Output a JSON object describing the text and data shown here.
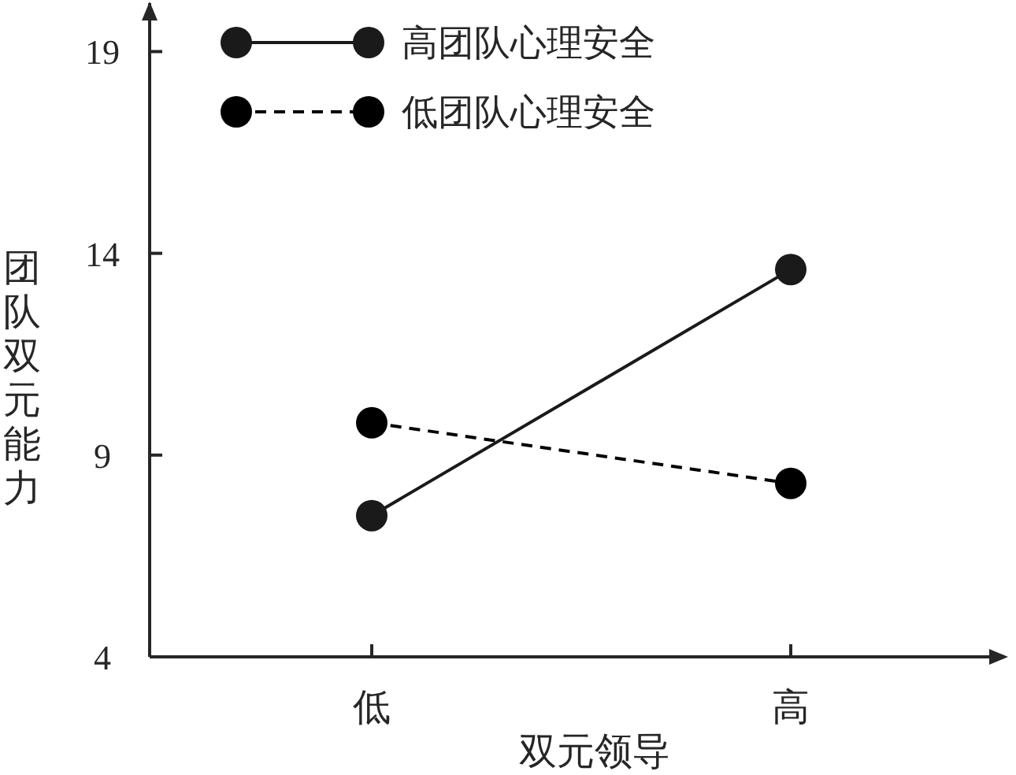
{
  "chart_data": {
    "type": "line",
    "xlabel": "双元领导",
    "ylabel": "团队双元能力",
    "categories": [
      "低",
      "高"
    ],
    "series": [
      {
        "name": "高团队心理安全",
        "color": "#1a1a1a",
        "values": [
          7.5,
          13.6
        ],
        "line_style": "solid"
      },
      {
        "name": "低团队心理安全",
        "color": "#000000",
        "values": [
          9.8,
          8.3
        ],
        "line_style": "dashed"
      }
    ],
    "ylim": [
      4,
      20.2
    ],
    "yticks": [
      4,
      9,
      14,
      19
    ],
    "marker": "circle",
    "legend": "top"
  }
}
